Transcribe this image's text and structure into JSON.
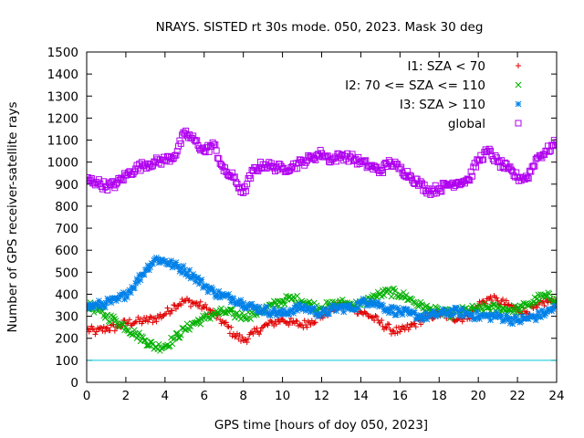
{
  "chart_data": {
    "type": "scatter",
    "title": "NRAYS. SISTED rt 30s mode. 050, 2023. Mask 30 deg",
    "xlabel": "GPS time [hours of doy 050, 2023]",
    "ylabel": "Number of GPS receiver-satellite rays",
    "xlim": [
      0,
      24
    ],
    "ylim": [
      0,
      1500
    ],
    "xticks": [
      0,
      2,
      4,
      6,
      8,
      10,
      12,
      14,
      16,
      18,
      20,
      22,
      24
    ],
    "yticks": [
      0,
      100,
      200,
      300,
      400,
      500,
      600,
      700,
      800,
      900,
      1000,
      1100,
      1200,
      1300,
      1400,
      1500
    ],
    "legend_position": "top-right",
    "reference_line": {
      "y": 100,
      "color": "#00c8d8"
    },
    "series": [
      {
        "name": "I1: SZA < 70",
        "marker": "+",
        "color": "#e00000",
        "x": [
          0,
          0.5,
          1,
          1.5,
          2,
          2.5,
          3,
          3.5,
          4,
          4.5,
          5,
          5.5,
          6,
          6.5,
          7,
          7.5,
          8,
          8.5,
          9,
          9.5,
          10,
          10.5,
          11,
          11.5,
          12,
          12.5,
          13,
          13.5,
          14,
          14.5,
          15,
          15.5,
          16,
          16.5,
          17,
          17.5,
          18,
          18.5,
          19,
          19.5,
          20,
          20.5,
          21,
          21.5,
          22,
          22.5,
          23,
          23.5,
          24
        ],
        "values": [
          240,
          230,
          245,
          250,
          270,
          275,
          280,
          290,
          310,
          350,
          370,
          360,
          340,
          310,
          270,
          220,
          190,
          220,
          250,
          270,
          285,
          270,
          260,
          280,
          300,
          330,
          350,
          345,
          320,
          300,
          270,
          240,
          230,
          250,
          280,
          300,
          310,
          300,
          290,
          300,
          350,
          380,
          370,
          350,
          330,
          320,
          340,
          370,
          360
        ]
      },
      {
        "name": "I2: 70 <= SZA <= 110",
        "marker": "x",
        "color": "#00b000",
        "x": [
          0,
          0.5,
          1,
          1.5,
          2,
          2.5,
          3,
          3.5,
          4,
          4.5,
          5,
          5.5,
          6,
          6.5,
          7,
          7.5,
          8,
          8.5,
          9,
          9.5,
          10,
          10.5,
          11,
          11.5,
          12,
          12.5,
          13,
          13.5,
          14,
          14.5,
          15,
          15.5,
          16,
          16.5,
          17,
          17.5,
          18,
          18.5,
          19,
          19.5,
          20,
          20.5,
          21,
          21.5,
          22,
          22.5,
          23,
          23.5,
          24
        ],
        "values": [
          350,
          330,
          300,
          280,
          250,
          220,
          190,
          160,
          165,
          200,
          240,
          270,
          290,
          310,
          320,
          310,
          300,
          310,
          330,
          350,
          370,
          380,
          370,
          350,
          340,
          350,
          360,
          355,
          350,
          380,
          400,
          410,
          400,
          380,
          350,
          330,
          320,
          310,
          320,
          330,
          330,
          340,
          335,
          330,
          330,
          350,
          380,
          390,
          380
        ]
      },
      {
        "name": "I3: SZA > 110",
        "marker": "*",
        "color": "#0080e8",
        "x": [
          0,
          0.5,
          1,
          1.5,
          2,
          2.5,
          3,
          3.5,
          4,
          4.5,
          5,
          5.5,
          6,
          6.5,
          7,
          7.5,
          8,
          8.5,
          9,
          9.5,
          10,
          10.5,
          11,
          11.5,
          12,
          12.5,
          13,
          13.5,
          14,
          14.5,
          15,
          15.5,
          16,
          16.5,
          17,
          17.5,
          18,
          18.5,
          19,
          19.5,
          20,
          20.5,
          21,
          21.5,
          22,
          22.5,
          23,
          23.5,
          24
        ],
        "values": [
          340,
          350,
          360,
          370,
          400,
          450,
          510,
          560,
          550,
          530,
          510,
          480,
          440,
          410,
          390,
          380,
          360,
          340,
          330,
          320,
          310,
          330,
          340,
          330,
          310,
          330,
          340,
          335,
          360,
          370,
          350,
          330,
          320,
          310,
          300,
          300,
          310,
          320,
          320,
          310,
          300,
          300,
          300,
          290,
          280,
          290,
          300,
          320,
          340
        ]
      },
      {
        "name": "global",
        "marker": "square",
        "color": "#b000f0",
        "x": [
          0,
          0.5,
          1,
          1.5,
          2,
          2.5,
          3,
          3.5,
          4,
          4.5,
          5,
          5.5,
          6,
          6.5,
          7,
          7.5,
          8,
          8.5,
          9,
          9.5,
          10,
          10.5,
          11,
          11.5,
          12,
          12.5,
          13,
          13.5,
          14,
          14.5,
          15,
          15.5,
          16,
          16.5,
          17,
          17.5,
          18,
          18.5,
          19,
          19.5,
          20,
          20.5,
          21,
          21.5,
          22,
          22.5,
          23,
          23.5,
          24
        ],
        "values": [
          920,
          910,
          890,
          900,
          940,
          970,
          990,
          1000,
          1010,
          1030,
          1130,
          1100,
          1050,
          1080,
          960,
          930,
          860,
          960,
          990,
          980,
          970,
          980,
          1000,
          1020,
          1040,
          1010,
          1030,
          1020,
          1000,
          980,
          960,
          1000,
          970,
          940,
          900,
          870,
          880,
          900,
          910,
          920,
          1010,
          1050,
          1000,
          970,
          930,
          930,
          1020,
          1050,
          1090
        ]
      }
    ]
  }
}
